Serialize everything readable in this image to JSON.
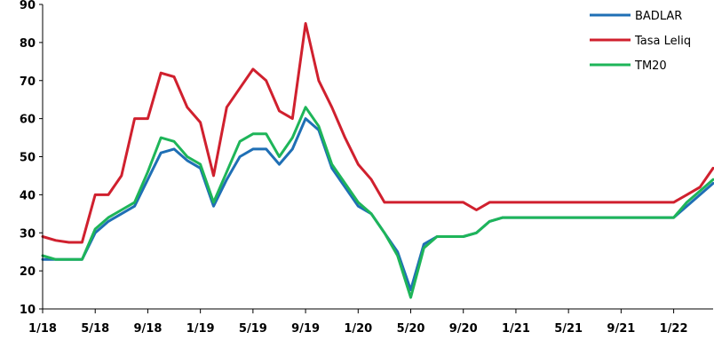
{
  "chart_data": {
    "type": "line",
    "title": "",
    "xlabel": "",
    "ylabel": "",
    "x_tick_labels": [
      "1/18",
      "5/18",
      "9/18",
      "1/19",
      "5/19",
      "9/19",
      "1/20",
      "5/20",
      "9/20",
      "1/21",
      "5/21",
      "9/21",
      "1/22"
    ],
    "y_tick_labels": [
      "10",
      "20",
      "30",
      "40",
      "50",
      "60",
      "70",
      "80",
      "90"
    ],
    "xlim": [
      "2018-01",
      "2022-04"
    ],
    "ylim": [
      10,
      90
    ],
    "grid": false,
    "legend_position": "top-right",
    "series": [
      {
        "name": "BADLAR",
        "color": "#1f6fb5",
        "x": [
          "2018-01",
          "2018-02",
          "2018-03",
          "2018-04",
          "2018-05",
          "2018-06",
          "2018-07",
          "2018-08",
          "2018-09",
          "2018-10",
          "2018-11",
          "2018-12",
          "2019-01",
          "2019-02",
          "2019-03",
          "2019-04",
          "2019-05",
          "2019-06",
          "2019-07",
          "2019-08",
          "2019-09",
          "2019-10",
          "2019-11",
          "2019-12",
          "2020-01",
          "2020-02",
          "2020-03",
          "2020-04",
          "2020-05",
          "2020-06",
          "2020-07",
          "2020-08",
          "2020-09",
          "2020-10",
          "2020-11",
          "2020-12",
          "2021-01",
          "2021-02",
          "2021-03",
          "2021-04",
          "2021-05",
          "2021-06",
          "2021-07",
          "2021-08",
          "2021-09",
          "2021-10",
          "2021-11",
          "2021-12",
          "2022-01",
          "2022-02",
          "2022-03",
          "2022-04"
        ],
        "values": [
          23,
          23,
          23,
          23,
          30,
          33,
          35,
          37,
          44,
          51,
          52,
          49,
          47,
          37,
          44,
          50,
          52,
          52,
          48,
          52,
          60,
          57,
          47,
          42,
          37,
          35,
          30,
          25,
          15,
          27,
          29,
          29,
          29,
          30,
          33,
          34,
          34,
          34,
          34,
          34,
          34,
          34,
          34,
          34,
          34,
          34,
          34,
          34,
          34,
          37,
          40,
          43
        ]
      },
      {
        "name": "Tasa Leliq",
        "color": "#d0202e",
        "x": [
          "2018-01",
          "2018-02",
          "2018-03",
          "2018-04",
          "2018-05",
          "2018-06",
          "2018-07",
          "2018-08",
          "2018-09",
          "2018-10",
          "2018-11",
          "2018-12",
          "2019-01",
          "2019-02",
          "2019-03",
          "2019-04",
          "2019-05",
          "2019-06",
          "2019-07",
          "2019-08",
          "2019-09",
          "2019-10",
          "2019-11",
          "2019-12",
          "2020-01",
          "2020-02",
          "2020-03",
          "2020-04",
          "2020-05",
          "2020-06",
          "2020-07",
          "2020-08",
          "2020-09",
          "2020-10",
          "2020-11",
          "2020-12",
          "2021-01",
          "2021-02",
          "2021-03",
          "2021-04",
          "2021-05",
          "2021-06",
          "2021-07",
          "2021-08",
          "2021-09",
          "2021-10",
          "2021-11",
          "2021-12",
          "2022-01",
          "2022-02",
          "2022-03",
          "2022-04"
        ],
        "values": [
          29,
          28,
          27.5,
          27.5,
          40,
          40,
          45,
          60,
          60,
          72,
          71,
          63,
          59,
          45,
          63,
          68,
          73,
          70,
          62,
          60,
          85,
          70,
          63,
          55,
          48,
          44,
          38,
          38,
          38,
          38,
          38,
          38,
          38,
          36,
          38,
          38,
          38,
          38,
          38,
          38,
          38,
          38,
          38,
          38,
          38,
          38,
          38,
          38,
          38,
          40,
          42,
          47
        ]
      },
      {
        "name": "TM20",
        "color": "#1eb559",
        "x": [
          "2018-01",
          "2018-02",
          "2018-03",
          "2018-04",
          "2018-05",
          "2018-06",
          "2018-07",
          "2018-08",
          "2018-09",
          "2018-10",
          "2018-11",
          "2018-12",
          "2019-01",
          "2019-02",
          "2019-03",
          "2019-04",
          "2019-05",
          "2019-06",
          "2019-07",
          "2019-08",
          "2019-09",
          "2019-10",
          "2019-11",
          "2019-12",
          "2020-01",
          "2020-02",
          "2020-03",
          "2020-04",
          "2020-05",
          "2020-06",
          "2020-07",
          "2020-08",
          "2020-09",
          "2020-10",
          "2020-11",
          "2020-12",
          "2021-01",
          "2021-02",
          "2021-03",
          "2021-04",
          "2021-05",
          "2021-06",
          "2021-07",
          "2021-08",
          "2021-09",
          "2021-10",
          "2021-11",
          "2021-12",
          "2022-01",
          "2022-02",
          "2022-03",
          "2022-04"
        ],
        "values": [
          24,
          23,
          23,
          23,
          31,
          34,
          36,
          38,
          46,
          55,
          54,
          50,
          48,
          38,
          46,
          54,
          56,
          56,
          50,
          55,
          63,
          58,
          48,
          43,
          38,
          35,
          30,
          24,
          13,
          26,
          29,
          29,
          29,
          30,
          33,
          34,
          34,
          34,
          34,
          34,
          34,
          34,
          34,
          34,
          34,
          34,
          34,
          34,
          34,
          38,
          41,
          44
        ]
      }
    ]
  }
}
